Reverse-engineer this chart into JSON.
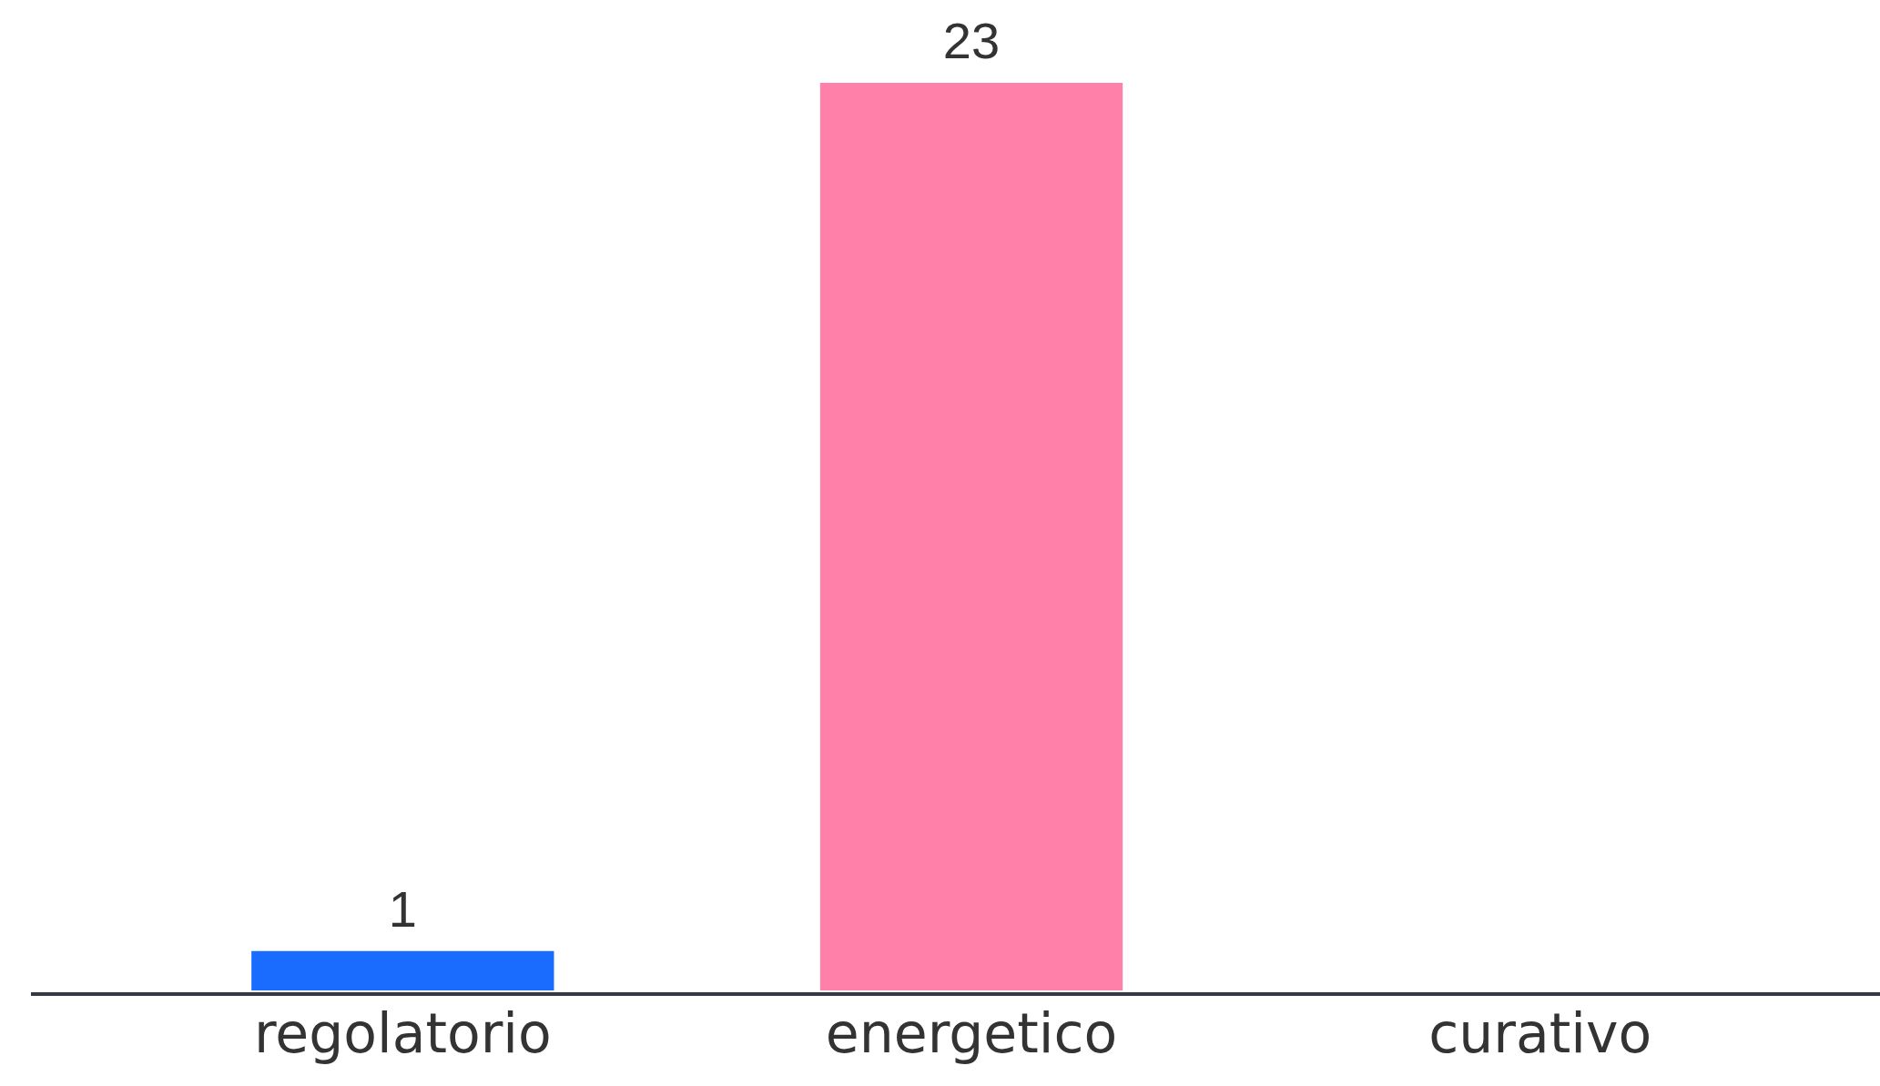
{
  "chart_data": {
    "type": "bar",
    "categories": [
      "regolatorio",
      "energetico",
      "curativo"
    ],
    "values": [
      1,
      23,
      0
    ],
    "colors": [
      "#1a6bff",
      "#ff80a8",
      "#888888"
    ],
    "value_labels": [
      "1",
      "23",
      null
    ],
    "ylim": [
      0,
      23
    ],
    "grid": false,
    "legend": false
  }
}
